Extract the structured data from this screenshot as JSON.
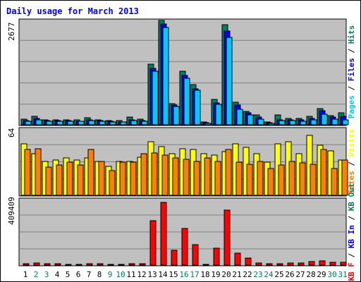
{
  "chart_data": [
    {
      "type": "bar",
      "title": "Daily usage for March 2013",
      "panel": "hits-files-pages",
      "categories": [
        "1",
        "2",
        "3",
        "4",
        "5",
        "6",
        "7",
        "8",
        "9",
        "10",
        "11",
        "12",
        "13",
        "14",
        "15",
        "16",
        "17",
        "18",
        "19",
        "20",
        "21",
        "22",
        "23",
        "24",
        "25",
        "26",
        "27",
        "28",
        "29",
        "30",
        "31"
      ],
      "weekend_days": [
        "2",
        "3",
        "9",
        "10",
        "16",
        "17",
        "23",
        "24",
        "30",
        "31"
      ],
      "y_max_label": "2677",
      "ylim": [
        0,
        2677
      ],
      "legend": [
        "Hits",
        "Files",
        "Pages"
      ],
      "series": [
        {
          "name": "Hits",
          "color": "#00805c",
          "values": [
            145,
            210,
            125,
            120,
            135,
            130,
            180,
            125,
            100,
            100,
            200,
            140,
            1550,
            2670,
            550,
            1370,
            1040,
            80,
            650,
            2560,
            580,
            340,
            260,
            70,
            260,
            160,
            160,
            220,
            425,
            240,
            300
          ]
        },
        {
          "name": "Files",
          "color": "#0000ff",
          "values": [
            110,
            160,
            110,
            100,
            105,
            95,
            125,
            100,
            90,
            80,
            130,
            105,
            1450,
            2580,
            500,
            1260,
            930,
            60,
            560,
            2410,
            500,
            300,
            190,
            50,
            130,
            135,
            130,
            170,
            360,
            190,
            215
          ]
        },
        {
          "name": "Pages",
          "color": "#00c8f8",
          "values": [
            95,
            125,
            95,
            85,
            90,
            85,
            100,
            85,
            70,
            65,
            105,
            95,
            1380,
            2500,
            470,
            1200,
            880,
            45,
            520,
            2250,
            390,
            250,
            140,
            40,
            110,
            115,
            95,
            130,
            270,
            145,
            125
          ]
        }
      ]
    },
    {
      "type": "bar",
      "panel": "visits-sites",
      "categories": [
        "1",
        "2",
        "3",
        "4",
        "5",
        "6",
        "7",
        "8",
        "9",
        "10",
        "11",
        "12",
        "13",
        "14",
        "15",
        "16",
        "17",
        "18",
        "19",
        "20",
        "21",
        "22",
        "23",
        "24",
        "25",
        "26",
        "27",
        "28",
        "29",
        "30",
        "31"
      ],
      "y_max_label": "64",
      "ylim": [
        0,
        64
      ],
      "legend": [
        "Visits",
        "Sites"
      ],
      "series": [
        {
          "name": "Visits",
          "color": "#ffff00",
          "values": [
            50,
            40,
            33,
            34,
            36,
            34,
            36,
            33,
            28,
            33,
            33,
            37,
            52,
            47,
            40,
            45,
            44,
            40,
            39,
            42,
            50,
            46,
            40,
            32,
            50,
            52,
            40,
            58,
            48,
            43,
            34
          ]
        },
        {
          "name": "Sites",
          "color": "#ff8000",
          "values": [
            44,
            45,
            27,
            29,
            32,
            29,
            44,
            33,
            24,
            32,
            32,
            40,
            41,
            39,
            36,
            35,
            33,
            36,
            33,
            44,
            32,
            30,
            33,
            26,
            29,
            33,
            31,
            30,
            44,
            26,
            34
          ]
        }
      ]
    },
    {
      "type": "bar",
      "panel": "kbytes",
      "categories": [
        "1",
        "2",
        "3",
        "4",
        "5",
        "6",
        "7",
        "8",
        "9",
        "10",
        "11",
        "12",
        "13",
        "14",
        "15",
        "16",
        "17",
        "18",
        "19",
        "20",
        "21",
        "22",
        "23",
        "24",
        "25",
        "26",
        "27",
        "28",
        "29",
        "30",
        "31"
      ],
      "y_max_label": "409409",
      "ylim": [
        0,
        409409
      ],
      "legend": [
        "KB F",
        "KB In",
        "KB Out"
      ],
      "series": [
        {
          "name": "KB F",
          "color": "#ff0000",
          "values": [
            9000,
            13000,
            8000,
            7000,
            6000,
            6000,
            10000,
            8000,
            5000,
            6000,
            11000,
            10000,
            278000,
            394000,
            91000,
            228000,
            129000,
            5000,
            106000,
            342000,
            76000,
            44000,
            12000,
            8000,
            10000,
            14000,
            13000,
            22000,
            28000,
            18000,
            18000
          ]
        }
      ]
    }
  ]
}
